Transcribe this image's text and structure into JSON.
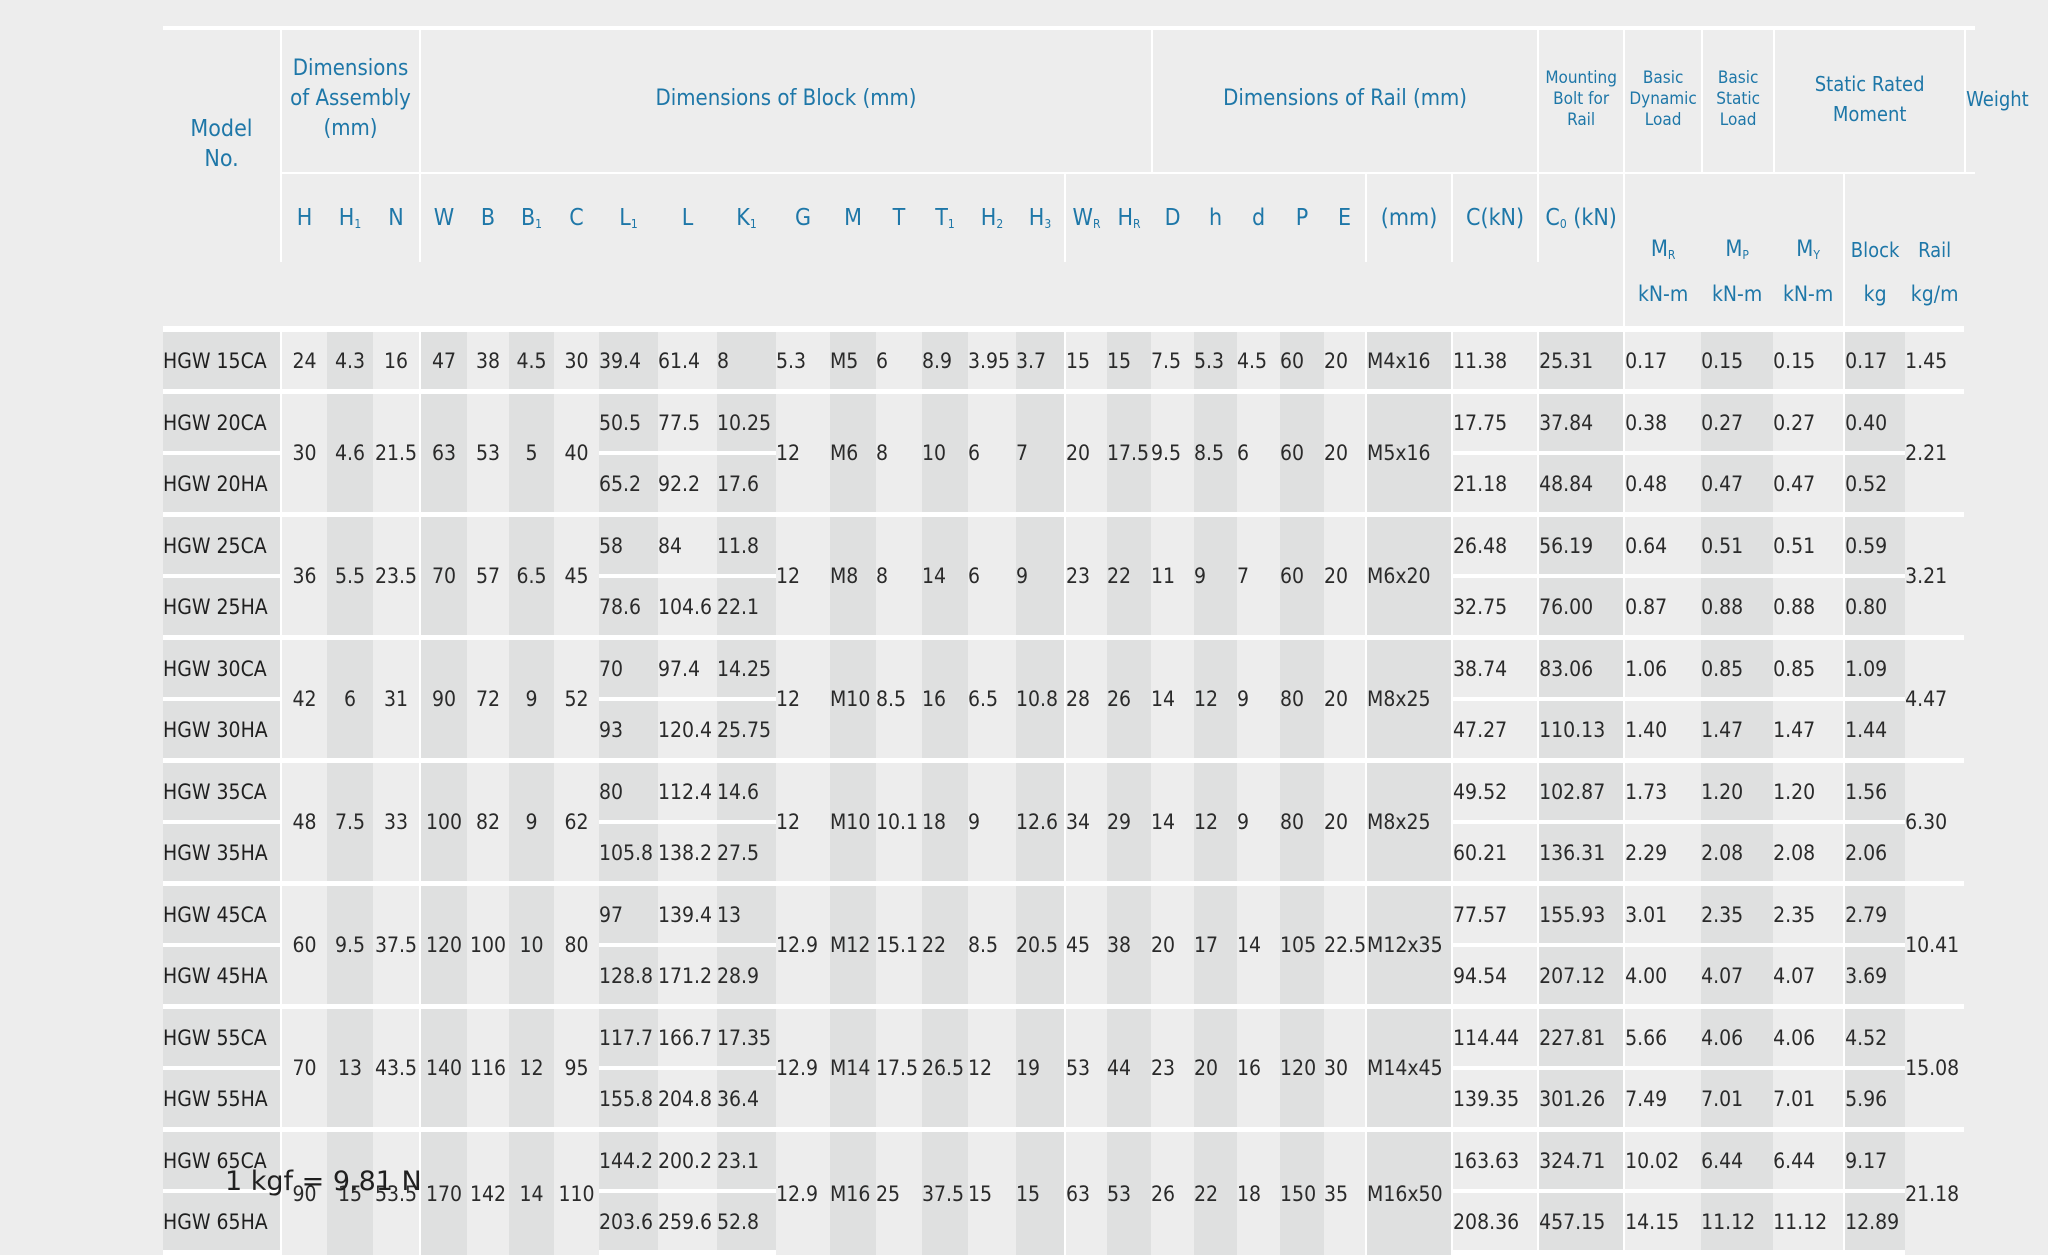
{
  "headers": {
    "model": [
      "Model",
      "No."
    ],
    "assembly": [
      "Dimensions",
      "of Assembly",
      "(mm)"
    ],
    "block": "Dimensions of Block (mm)",
    "rail": "Dimensions of Rail (mm)",
    "bolt": [
      "Mounting",
      "Bolt for",
      "Rail"
    ],
    "dynamic": [
      "Basic",
      "Dynamic",
      "Load"
    ],
    "static": [
      "Basic",
      "Static",
      "Load"
    ],
    "moment": "Static Rated Moment",
    "weight": "Weight",
    "bolt_unit": "(mm)",
    "c_unit": "C(kN)",
    "c0_unit": "C",
    "c0_sub": "0",
    "c0_suffix": " (kN)",
    "mr": "M",
    "mr_sub": "R",
    "mp": "M",
    "mp_sub": "P",
    "my": "M",
    "my_sub": "Y",
    "block_w": "Block",
    "rail_w": "Rail",
    "moment_unit": "kN-m",
    "block_unit": "kg",
    "rail_unit": "kg/m",
    "sym": {
      "H": "H",
      "H1": "H",
      "N": "N",
      "W": "W",
      "B": "B",
      "B1": "B",
      "C": "C",
      "L1": "L",
      "L": "L",
      "K1": "K",
      "G": "G",
      "M": "M",
      "T": "T",
      "T1": "T",
      "H2": "H",
      "H3": "H",
      "WR": "W",
      "HR": "H",
      "D": "D",
      "h": "h",
      "d": "d",
      "P": "P",
      "E": "E"
    },
    "sub": {
      "H1": "1",
      "B1": "1",
      "L1": "1",
      "K1": "1",
      "T1": "1",
      "H2": "2",
      "H3": "3",
      "WR": "R",
      "HR": "R"
    }
  },
  "groups": [
    {
      "H": "24",
      "H1": "4.3",
      "N": "16",
      "W": "47",
      "B": "38",
      "B1": "4.5",
      "C": "30",
      "G": "5.3",
      "M": "M5",
      "T": "6",
      "T1": "8.9",
      "H2": "3.95",
      "H3": "3.7",
      "WR": "15",
      "HR": "15",
      "D": "7.5",
      "h": "5.3",
      "d": "4.5",
      "P": "60",
      "E": "20",
      "bolt": "M4x16",
      "rail_kg": "1.45",
      "rows": [
        {
          "model": "HGW 15CA",
          "L1": "39.4",
          "L": "61.4",
          "K1": "8",
          "C": "11.38",
          "C0": "25.31",
          "MR": "0.17",
          "MP": "0.15",
          "MY": "0.15",
          "block_kg": "0.17"
        }
      ]
    },
    {
      "H": "30",
      "H1": "4.6",
      "N": "21.5",
      "W": "63",
      "B": "53",
      "B1": "5",
      "C": "40",
      "G": "12",
      "M": "M6",
      "T": "8",
      "T1": "10",
      "H2": "6",
      "H3": "7",
      "WR": "20",
      "HR": "17.5",
      "D": "9.5",
      "h": "8.5",
      "d": "6",
      "P": "60",
      "E": "20",
      "bolt": "M5x16",
      "rail_kg": "2.21",
      "rows": [
        {
          "model": "HGW 20CA",
          "L1": "50.5",
          "L": "77.5",
          "K1": "10.25",
          "C": "17.75",
          "C0": "37.84",
          "MR": "0.38",
          "MP": "0.27",
          "MY": "0.27",
          "block_kg": "0.40"
        },
        {
          "model": "HGW 20HA",
          "L1": "65.2",
          "L": "92.2",
          "K1": "17.6",
          "C": "21.18",
          "C0": "48.84",
          "MR": "0.48",
          "MP": "0.47",
          "MY": "0.47",
          "block_kg": "0.52"
        }
      ]
    },
    {
      "H": "36",
      "H1": "5.5",
      "N": "23.5",
      "W": "70",
      "B": "57",
      "B1": "6.5",
      "C": "45",
      "G": "12",
      "M": "M8",
      "T": "8",
      "T1": "14",
      "H2": "6",
      "H3": "9",
      "WR": "23",
      "HR": "22",
      "D": "11",
      "h": "9",
      "d": "7",
      "P": "60",
      "E": "20",
      "bolt": "M6x20",
      "rail_kg": "3.21",
      "rows": [
        {
          "model": "HGW 25CA",
          "L1": "58",
          "L": "84",
          "K1": "11.8",
          "C": "26.48",
          "C0": "56.19",
          "MR": "0.64",
          "MP": "0.51",
          "MY": "0.51",
          "block_kg": "0.59"
        },
        {
          "model": "HGW 25HA",
          "L1": "78.6",
          "L": "104.6",
          "K1": "22.1",
          "C": "32.75",
          "C0": "76.00",
          "MR": "0.87",
          "MP": "0.88",
          "MY": "0.88",
          "block_kg": "0.80"
        }
      ]
    },
    {
      "H": "42",
      "H1": "6",
      "N": "31",
      "W": "90",
      "B": "72",
      "B1": "9",
      "C": "52",
      "G": "12",
      "M": "M10",
      "T": "8.5",
      "T1": "16",
      "H2": "6.5",
      "H3": "10.8",
      "WR": "28",
      "HR": "26",
      "D": "14",
      "h": "12",
      "d": "9",
      "P": "80",
      "E": "20",
      "bolt": "M8x25",
      "rail_kg": "4.47",
      "rows": [
        {
          "model": "HGW 30CA",
          "L1": "70",
          "L": "97.4",
          "K1": "14.25",
          "C": "38.74",
          "C0": "83.06",
          "MR": "1.06",
          "MP": "0.85",
          "MY": "0.85",
          "block_kg": "1.09"
        },
        {
          "model": "HGW 30HA",
          "L1": "93",
          "L": "120.4",
          "K1": "25.75",
          "C": "47.27",
          "C0": "110.13",
          "MR": "1.40",
          "MP": "1.47",
          "MY": "1.47",
          "block_kg": "1.44"
        }
      ]
    },
    {
      "H": "48",
      "H1": "7.5",
      "N": "33",
      "W": "100",
      "B": "82",
      "B1": "9",
      "C": "62",
      "G": "12",
      "M": "M10",
      "T": "10.1",
      "T1": "18",
      "H2": "9",
      "H3": "12.6",
      "WR": "34",
      "HR": "29",
      "D": "14",
      "h": "12",
      "d": "9",
      "P": "80",
      "E": "20",
      "bolt": "M8x25",
      "rail_kg": "6.30",
      "rows": [
        {
          "model": "HGW 35CA",
          "L1": "80",
          "L": "112.4",
          "K1": "14.6",
          "C": "49.52",
          "C0": "102.87",
          "MR": "1.73",
          "MP": "1.20",
          "MY": "1.20",
          "block_kg": "1.56"
        },
        {
          "model": "HGW 35HA",
          "L1": "105.8",
          "L": "138.2",
          "K1": "27.5",
          "C": "60.21",
          "C0": "136.31",
          "MR": "2.29",
          "MP": "2.08",
          "MY": "2.08",
          "block_kg": "2.06"
        }
      ]
    },
    {
      "H": "60",
      "H1": "9.5",
      "N": "37.5",
      "W": "120",
      "B": "100",
      "B1": "10",
      "C": "80",
      "G": "12.9",
      "M": "M12",
      "T": "15.1",
      "T1": "22",
      "H2": "8.5",
      "H3": "20.5",
      "WR": "45",
      "HR": "38",
      "D": "20",
      "h": "17",
      "d": "14",
      "P": "105",
      "E": "22.5",
      "bolt": "M12x35",
      "rail_kg": "10.41",
      "rows": [
        {
          "model": "HGW 45CA",
          "L1": "97",
          "L": "139.4",
          "K1": "13",
          "C": "77.57",
          "C0": "155.93",
          "MR": "3.01",
          "MP": "2.35",
          "MY": "2.35",
          "block_kg": "2.79"
        },
        {
          "model": "HGW 45HA",
          "L1": "128.8",
          "L": "171.2",
          "K1": "28.9",
          "C": "94.54",
          "C0": "207.12",
          "MR": "4.00",
          "MP": "4.07",
          "MY": "4.07",
          "block_kg": "3.69"
        }
      ]
    },
    {
      "H": "70",
      "H1": "13",
      "N": "43.5",
      "W": "140",
      "B": "116",
      "B1": "12",
      "C": "95",
      "G": "12.9",
      "M": "M14",
      "T": "17.5",
      "T1": "26.5",
      "H2": "12",
      "H3": "19",
      "WR": "53",
      "HR": "44",
      "D": "23",
      "h": "20",
      "d": "16",
      "P": "120",
      "E": "30",
      "bolt": "M14x45",
      "rail_kg": "15.08",
      "rows": [
        {
          "model": "HGW 55CA",
          "L1": "117.7",
          "L": "166.7",
          "K1": "17.35",
          "C": "114.44",
          "C0": "227.81",
          "MR": "5.66",
          "MP": "4.06",
          "MY": "4.06",
          "block_kg": "4.52"
        },
        {
          "model": "HGW 55HA",
          "L1": "155.8",
          "L": "204.8",
          "K1": "36.4",
          "C": "139.35",
          "C0": "301.26",
          "MR": "7.49",
          "MP": "7.01",
          "MY": "7.01",
          "block_kg": "5.96"
        }
      ]
    },
    {
      "H": "90",
      "H1": "15",
      "N": "53.5",
      "W": "170",
      "B": "142",
      "B1": "14",
      "C": "110",
      "G": "12.9",
      "M": "M16",
      "T": "25",
      "T1": "37.5",
      "H2": "15",
      "H3": "15",
      "WR": "63",
      "HR": "53",
      "D": "26",
      "h": "22",
      "d": "18",
      "P": "150",
      "E": "35",
      "bolt": "M16x50",
      "rail_kg": "21.18",
      "rows": [
        {
          "model": "HGW 65CA",
          "L1": "144.2",
          "L": "200.2",
          "K1": "23.1",
          "C": "163.63",
          "C0": "324.71",
          "MR": "10.02",
          "MP": "6.44",
          "MY": "6.44",
          "block_kg": "9.17"
        },
        {
          "model": "HGW 65HA",
          "L1": "203.6",
          "L": "259.6",
          "K1": "52.8",
          "C": "208.36",
          "C0": "457.15",
          "MR": "14.15",
          "MP": "11.12",
          "MY": "11.12",
          "block_kg": "12.89"
        }
      ]
    }
  ],
  "footnote": "1 kgf = 9.81 N"
}
